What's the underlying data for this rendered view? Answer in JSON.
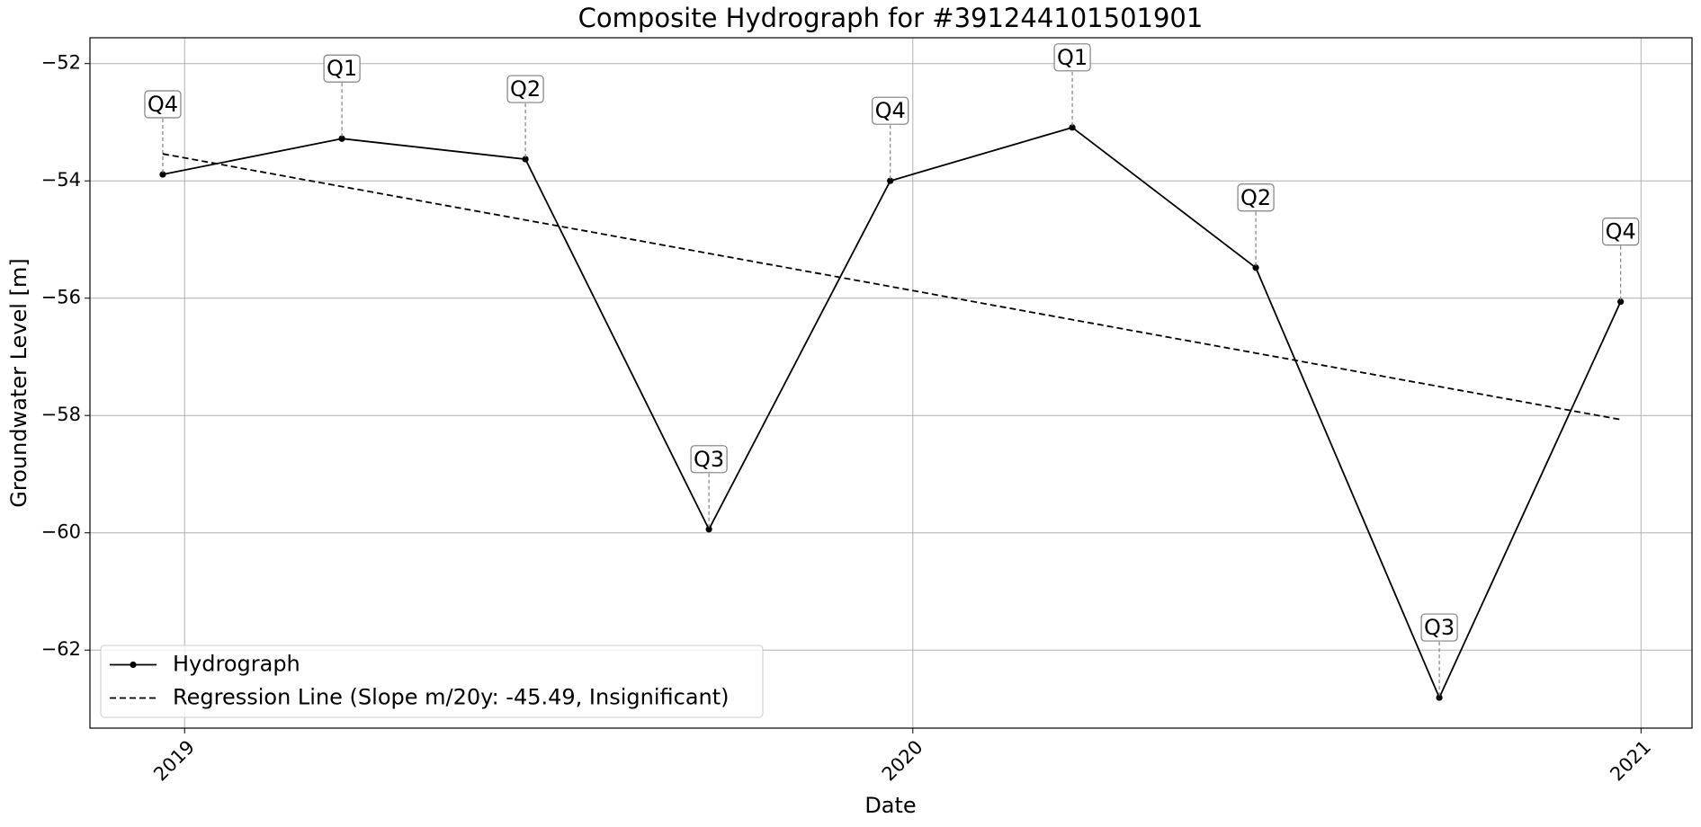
{
  "chart_data": {
    "type": "line",
    "title": "Composite Hydrograph for  #391244101501901",
    "x_label": "Date",
    "y_label": "Groundwater Level [m]",
    "xlim": [
      2018.87,
      2021.07
    ],
    "xticks": [
      2019,
      2020,
      2021
    ],
    "ylim": [
      -63.33,
      -51.56
    ],
    "yticks": [
      {
        "value": -62,
        "label": "−62"
      },
      {
        "value": -60,
        "label": "−60"
      },
      {
        "value": -58,
        "label": "−58"
      },
      {
        "value": -56,
        "label": "−56"
      },
      {
        "value": -54,
        "label": "−54"
      },
      {
        "value": -52,
        "label": "−52"
      }
    ],
    "grid": true,
    "legend": "lower left",
    "series": [
      {
        "name": "Hydrograph",
        "color": "#000000",
        "marker": "o",
        "linestyle": "solid",
        "x": [
          2018.97,
          2019.216,
          2019.468,
          2019.72,
          2019.969,
          2020.219,
          2020.471,
          2020.723,
          2020.972
        ],
        "values": [
          -53.89,
          -53.28,
          -53.63,
          -59.94,
          -54.0,
          -53.09,
          -55.48,
          -62.81,
          -56.06
        ],
        "point_labels": [
          "Q4",
          "Q1",
          "Q2",
          "Q3",
          "Q4",
          "Q1",
          "Q2",
          "Q3",
          "Q4"
        ]
      },
      {
        "name": "Regression Line (Slope m/20y: -45.49, Insignificant)",
        "color": "#000000",
        "linestyle": "dashed",
        "x": [
          2018.97,
          2020.972
        ],
        "values": [
          -53.54,
          -58.07
        ]
      }
    ]
  }
}
